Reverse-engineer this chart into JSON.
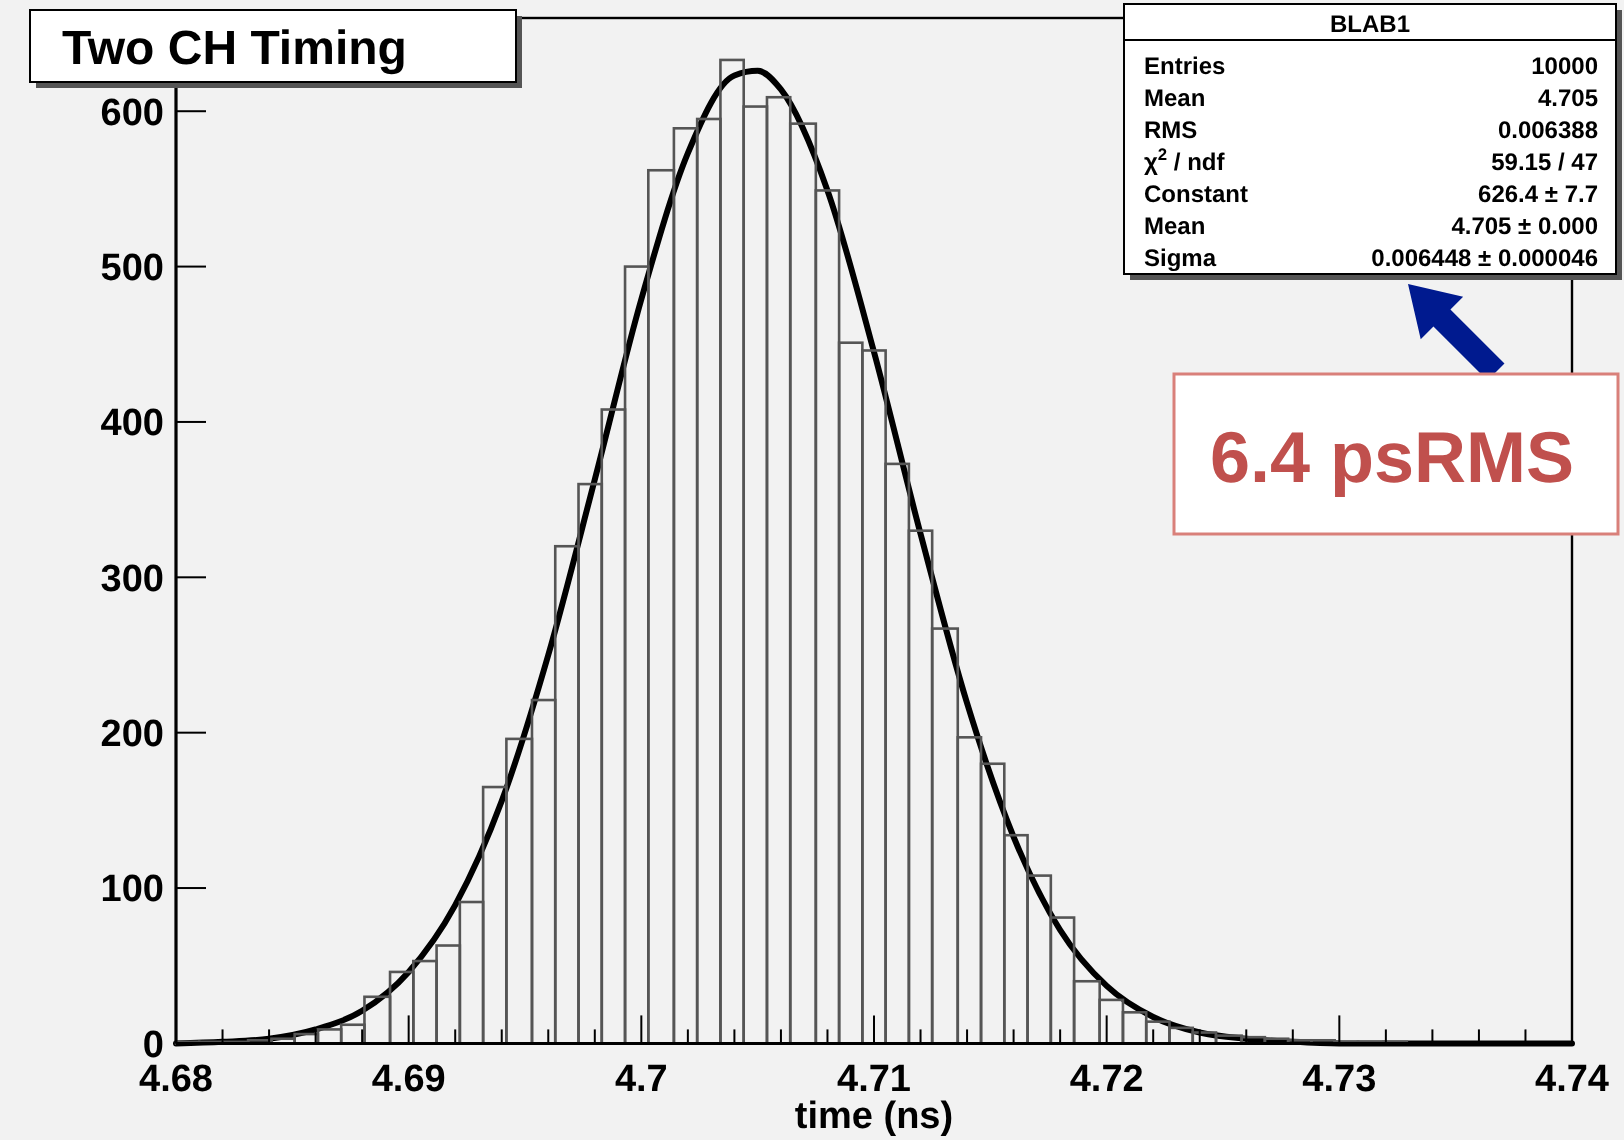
{
  "chart_data": {
    "type": "histogram",
    "title": "Two CH Timing",
    "xlabel": "time (ns)",
    "bins": [
      4.68,
      4.681,
      4.682,
      4.6831,
      4.6841,
      4.6851,
      4.6861,
      4.6871,
      4.6881,
      4.6892,
      4.6902,
      4.6912,
      4.6922,
      4.6932,
      4.6942,
      4.6953,
      4.6963,
      4.6973,
      4.6983,
      4.6993,
      4.7003,
      4.7014,
      4.7024,
      4.7034,
      4.7044,
      4.7054,
      4.7064,
      4.7075,
      4.7085,
      4.7095,
      4.7105,
      4.7115,
      4.7125,
      4.7136,
      4.7146,
      4.7156,
      4.7166,
      4.7176,
      4.7186,
      4.7197,
      4.7207,
      4.7217,
      4.7227,
      4.7237,
      4.7247,
      4.7258,
      4.7268,
      4.7278,
      4.7288,
      4.7298,
      4.7308,
      4.7319,
      4.7329
    ],
    "series": [
      {
        "color": "#555555",
        "values": [
          1,
          1,
          1,
          2,
          3,
          6,
          9,
          12,
          30,
          46,
          53,
          63,
          91,
          165,
          196,
          221,
          320,
          360,
          408,
          500,
          562,
          589,
          595,
          633,
          603,
          609,
          592,
          549,
          451,
          446,
          373,
          330,
          267,
          197,
          180,
          134,
          108,
          81,
          40,
          28,
          20,
          14,
          10,
          7,
          5,
          4,
          3,
          2,
          2,
          1,
          1,
          1
        ]
      },
      {
        "type": "line",
        "color": "#000000",
        "x": [
          4.68,
          4.682,
          4.684,
          4.686,
          4.688,
          4.69,
          4.692,
          4.694,
          4.696,
          4.698,
          4.7,
          4.702,
          4.704,
          4.705,
          4.706,
          4.708,
          4.71,
          4.712,
          4.714,
          4.716,
          4.718,
          4.72,
          4.722,
          4.724,
          4.726,
          4.728,
          4.73,
          4.735,
          4.74
        ],
        "values": [
          0,
          1,
          3,
          9,
          21,
          46,
          89,
          156,
          250,
          363,
          479,
          573,
          623,
          626,
          614,
          549,
          445,
          328,
          219,
          133,
          73,
          37,
          17,
          7,
          3,
          1,
          0,
          0,
          0
        ]
      }
    ],
    "xlim": [
      4.68,
      4.74
    ],
    "ylim": [
      0,
      660
    ],
    "xticks": [
      4.68,
      {
        "value": 4.682,
        "label": null
      },
      {
        "value": 4.684,
        "label": null
      },
      {
        "value": 4.686,
        "label": null
      },
      {
        "value": 4.688,
        "label": null
      },
      4.69,
      {
        "value": 4.692,
        "label": null
      },
      {
        "value": 4.694,
        "label": null
      },
      {
        "value": 4.696,
        "label": null
      },
      {
        "value": 4.698,
        "label": null
      },
      4.7,
      {
        "value": 4.702,
        "label": null
      },
      {
        "value": 4.704,
        "label": null
      },
      {
        "value": 4.706,
        "label": null
      },
      {
        "value": 4.708,
        "label": null
      },
      4.71,
      {
        "value": 4.712,
        "label": null
      },
      {
        "value": 4.714,
        "label": null
      },
      {
        "value": 4.716,
        "label": null
      },
      {
        "value": 4.718,
        "label": null
      },
      4.72,
      {
        "value": 4.722,
        "label": null
      },
      {
        "value": 4.724,
        "label": null
      },
      {
        "value": 4.726,
        "label": null
      },
      {
        "value": 4.728,
        "label": null
      },
      4.73,
      {
        "value": 4.732,
        "label": null
      },
      {
        "value": 4.734,
        "label": null
      },
      {
        "value": 4.736,
        "label": null
      },
      {
        "value": 4.738,
        "label": null
      },
      4.74
    ],
    "yticks": [
      0,
      100,
      200,
      300,
      400,
      500,
      600
    ],
    "annotations": [
      "BLAB1",
      "Entries\t10000",
      "Mean\t4.705",
      "RMS\t0.006388",
      "χ$^{2}$ / ndf\t59.15 / 47",
      "Constant\t626.4 ± 7.7",
      "Mean\t4.705 ± 0.000",
      "Sigma\t0.006448 ± 0.000046",
      "6.4 psRMS"
    ]
  }
}
